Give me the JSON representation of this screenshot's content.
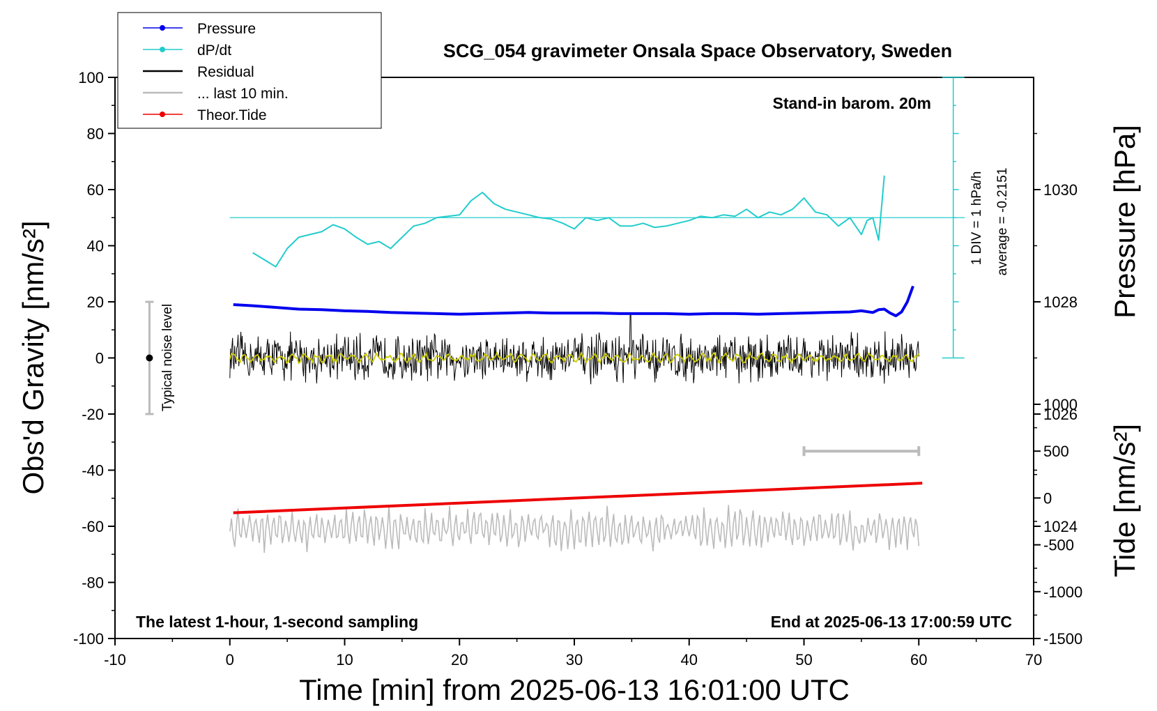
{
  "chart_data": {
    "type": "line",
    "title": "SCG_054 gravimeter Onsala Space Observatory, Sweden",
    "xlabel": "Time [min] from 2025-06-13 16:01:00 UTC",
    "ylabel_left": "Obs'd Gravity [nm/s²]",
    "ylabel_right_top": "Pressure [hPa]",
    "ylabel_right_bottom": "Tide [nm/s²]",
    "xlim": [
      -10,
      70
    ],
    "ylim_left": [
      -100,
      100
    ],
    "pressure_ylim": [
      1022,
      1032
    ],
    "tide_ylim": [
      -1500,
      1000
    ],
    "x_ticks": [
      "-10",
      "0",
      "10",
      "20",
      "30",
      "40",
      "50",
      "60",
      "70"
    ],
    "y_ticks_left": [
      "100",
      "80",
      "60",
      "40",
      "20",
      "0",
      "-20",
      "-40",
      "-60",
      "-80",
      "-100"
    ],
    "pressure_ticks": [
      "1030",
      "1028",
      "1026",
      "1024"
    ],
    "tide_ticks": [
      "1000",
      "500",
      "0",
      "-500",
      "-1000",
      "-1500"
    ],
    "legend": {
      "placement": "top-left",
      "entries": [
        "Pressure",
        "dP/dt",
        "Residual",
        "... last 10 min.",
        "Theor.Tide"
      ]
    },
    "annotations": {
      "stand_in": "Stand-in barom. 20m",
      "div_label": "1 DIV = 1 hPa/h",
      "average_label": "average = -0.2151",
      "noise_label": "Typical noise level",
      "latest": "The latest 1-hour, 1-second sampling",
      "end_at": "End at 2025-06-13 17:00:59 UTC"
    },
    "colors": {
      "pressure": "#0000ee",
      "dpdt": "#22cccc",
      "residual": "#000000",
      "last10": "#bbbbbb",
      "tide": "#ee0000",
      "smooth": "#cccc00"
    },
    "series": [
      {
        "name": "Pressure",
        "axis": "pressure",
        "x": [
          0.3,
          2,
          4,
          6,
          8,
          10,
          12,
          14,
          16,
          18,
          20,
          22,
          24,
          26,
          28,
          30,
          32,
          34,
          36,
          38,
          40,
          42,
          44,
          46,
          48,
          50,
          52,
          54,
          55,
          56,
          56.5,
          57,
          57.5,
          58,
          58.5,
          59,
          59.5
        ],
        "y": [
          1027.95,
          1027.93,
          1027.9,
          1027.87,
          1027.86,
          1027.84,
          1027.83,
          1027.81,
          1027.8,
          1027.79,
          1027.78,
          1027.79,
          1027.8,
          1027.81,
          1027.8,
          1027.8,
          1027.8,
          1027.79,
          1027.79,
          1027.79,
          1027.78,
          1027.79,
          1027.79,
          1027.78,
          1027.79,
          1027.8,
          1027.81,
          1027.82,
          1027.84,
          1027.81,
          1027.86,
          1027.87,
          1027.8,
          1027.75,
          1027.82,
          1028.0,
          1028.28
        ]
      },
      {
        "name": "dP/dt",
        "axis": "left",
        "x": [
          2,
          3,
          4,
          5,
          6,
          7,
          8,
          9,
          10,
          11,
          12,
          13,
          14,
          15,
          16,
          17,
          18,
          19,
          20,
          21,
          22,
          23,
          24,
          25,
          26,
          27,
          28,
          29,
          30,
          31,
          32,
          33,
          34,
          35,
          36,
          37,
          38,
          39,
          40,
          41,
          42,
          43,
          44,
          45,
          46,
          47,
          48,
          49,
          50,
          51,
          52,
          53,
          54,
          55,
          55.5,
          56,
          56.5,
          57
        ],
        "y": [
          37.5,
          35,
          32.5,
          39,
          43,
          44,
          45,
          47.5,
          46,
          43,
          40.5,
          41.5,
          39,
          43,
          47,
          48,
          50,
          50.5,
          51,
          56,
          59,
          55,
          53,
          52,
          51,
          50,
          49.5,
          48,
          46,
          50,
          49,
          50,
          47,
          47,
          48,
          46.5,
          47,
          48,
          49,
          50.5,
          50,
          51,
          50.5,
          53,
          50,
          52,
          51,
          53,
          57,
          52,
          51,
          47,
          50,
          44,
          49,
          50,
          42,
          65
        ]
      },
      {
        "name": "Theor.Tide",
        "axis": "tide",
        "x": [
          0.3,
          60.3
        ],
        "y": [
          -158,
          158
        ]
      }
    ],
    "dpdt_average_line": 50,
    "residual": {
      "x_range": [
        0,
        60
      ],
      "amplitude_nm_s2": 10,
      "mean": 0
    },
    "last_10_min": {
      "x_range": [
        0,
        60
      ],
      "mean": -61,
      "amplitude_nm_s2": 10
    },
    "last_10_min_marker": {
      "x_range": [
        50,
        60
      ],
      "tide_value": 500
    },
    "noise_bar": {
      "x": -7,
      "center": 0,
      "range": [
        -20,
        20
      ]
    }
  }
}
